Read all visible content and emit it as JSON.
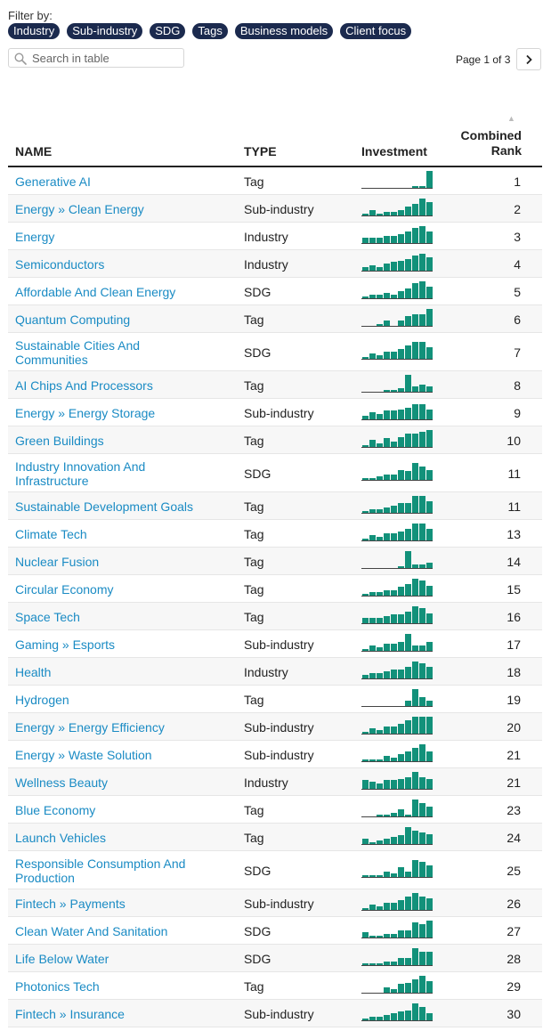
{
  "filter": {
    "label": "Filter by:",
    "chips": [
      "Industry",
      "Sub-industry",
      "SDG",
      "Tags",
      "Business models",
      "Client focus"
    ]
  },
  "search": {
    "placeholder": "Search in table",
    "value": ""
  },
  "pager": {
    "text": "Page 1 of 3"
  },
  "columns": {
    "name": "NAME",
    "type": "TYPE",
    "investment": "Investment",
    "rank_line1": "Combined",
    "rank_line2": "Rank"
  },
  "colors": {
    "link": "#1a8bc4",
    "chip_bg": "#1b2a4e",
    "bar": "#12917a",
    "row_alt": "#f7f7f7"
  },
  "rows": [
    {
      "name": "Generative AI",
      "type": "Tag",
      "rank": "1",
      "bars": [
        0,
        0,
        0,
        0,
        0,
        0,
        0,
        1,
        1,
        10
      ]
    },
    {
      "name": "Energy » Clean Energy",
      "type": "Sub-industry",
      "rank": "2",
      "bars": [
        1,
        3,
        1,
        2,
        2,
        3,
        5,
        7,
        10,
        8
      ]
    },
    {
      "name": "Energy",
      "type": "Industry",
      "rank": "3",
      "bars": [
        3,
        3,
        3,
        4,
        4,
        5,
        7,
        9,
        10,
        7
      ]
    },
    {
      "name": "Semiconductors",
      "type": "Industry",
      "rank": "4",
      "bars": [
        2,
        3,
        2,
        4,
        5,
        6,
        7,
        9,
        10,
        8
      ]
    },
    {
      "name": "Affordable And Clean Energy",
      "type": "SDG",
      "rank": "5",
      "bars": [
        1,
        2,
        2,
        3,
        2,
        4,
        6,
        9,
        10,
        7
      ]
    },
    {
      "name": "Quantum Computing",
      "type": "Tag",
      "rank": "6",
      "bars": [
        0,
        0,
        1,
        3,
        0,
        3,
        6,
        7,
        7,
        10
      ]
    },
    {
      "name": "Sustainable Cities And Communities",
      "type": "SDG",
      "rank": "7",
      "bars": [
        1,
        3,
        2,
        4,
        4,
        6,
        8,
        10,
        10,
        7
      ]
    },
    {
      "name": "AI Chips And Processors",
      "type": "Tag",
      "rank": "8",
      "bars": [
        0,
        0,
        0,
        1,
        1,
        2,
        10,
        3,
        4,
        3
      ]
    },
    {
      "name": "Energy » Energy Storage",
      "type": "Sub-industry",
      "rank": "9",
      "bars": [
        2,
        4,
        3,
        5,
        5,
        6,
        7,
        9,
        9,
        6
      ]
    },
    {
      "name": "Green Buildings",
      "type": "Tag",
      "rank": "10",
      "bars": [
        1,
        4,
        2,
        5,
        3,
        6,
        8,
        8,
        9,
        10
      ]
    },
    {
      "name": "Industry Innovation And Infrastructure",
      "type": "SDG",
      "rank": "11",
      "bars": [
        1,
        1,
        2,
        3,
        3,
        6,
        5,
        10,
        8,
        6
      ]
    },
    {
      "name": "Sustainable Development Goals",
      "type": "Tag",
      "rank": "11",
      "bars": [
        1,
        2,
        2,
        3,
        4,
        6,
        6,
        10,
        10,
        7
      ]
    },
    {
      "name": "Climate Tech",
      "type": "Tag",
      "rank": "13",
      "bars": [
        1,
        3,
        2,
        4,
        4,
        5,
        7,
        10,
        10,
        7
      ]
    },
    {
      "name": "Nuclear Fusion",
      "type": "Tag",
      "rank": "14",
      "bars": [
        0,
        0,
        0,
        0,
        0,
        1,
        10,
        2,
        2,
        3
      ]
    },
    {
      "name": "Circular Economy",
      "type": "Tag",
      "rank": "15",
      "bars": [
        1,
        2,
        2,
        3,
        3,
        5,
        7,
        10,
        9,
        6
      ]
    },
    {
      "name": "Space Tech",
      "type": "Tag",
      "rank": "16",
      "bars": [
        3,
        3,
        3,
        4,
        5,
        5,
        7,
        10,
        9,
        6
      ]
    },
    {
      "name": "Gaming » Esports",
      "type": "Sub-industry",
      "rank": "17",
      "bars": [
        1,
        3,
        2,
        4,
        4,
        5,
        10,
        3,
        3,
        5
      ]
    },
    {
      "name": "Health",
      "type": "Industry",
      "rank": "18",
      "bars": [
        2,
        3,
        3,
        4,
        5,
        5,
        7,
        10,
        9,
        7
      ]
    },
    {
      "name": "Hydrogen",
      "type": "Tag",
      "rank": "19",
      "bars": [
        0,
        0,
        0,
        0,
        0,
        0,
        3,
        10,
        5,
        3
      ]
    },
    {
      "name": "Energy » Energy Efficiency",
      "type": "Sub-industry",
      "rank": "20",
      "bars": [
        1,
        3,
        2,
        4,
        4,
        6,
        8,
        10,
        10,
        10
      ]
    },
    {
      "name": "Energy » Waste Solution",
      "type": "Sub-industry",
      "rank": "21",
      "bars": [
        1,
        1,
        1,
        3,
        2,
        4,
        6,
        8,
        10,
        6
      ]
    },
    {
      "name": "Wellness Beauty",
      "type": "Industry",
      "rank": "21",
      "bars": [
        5,
        4,
        3,
        5,
        5,
        6,
        7,
        10,
        7,
        6
      ]
    },
    {
      "name": "Blue Economy",
      "type": "Tag",
      "rank": "23",
      "bars": [
        0,
        0,
        1,
        1,
        2,
        4,
        1,
        10,
        8,
        6
      ]
    },
    {
      "name": "Launch Vehicles",
      "type": "Tag",
      "rank": "24",
      "bars": [
        3,
        1,
        2,
        3,
        4,
        5,
        10,
        8,
        7,
        6
      ]
    },
    {
      "name": "Responsible Consumption And Production",
      "type": "SDG",
      "rank": "25",
      "bars": [
        1,
        1,
        1,
        3,
        2,
        6,
        3,
        10,
        9,
        7
      ]
    },
    {
      "name": "Fintech » Payments",
      "type": "Sub-industry",
      "rank": "26",
      "bars": [
        1,
        3,
        2,
        4,
        4,
        6,
        8,
        10,
        8,
        7
      ]
    },
    {
      "name": "Clean Water And Sanitation",
      "type": "SDG",
      "rank": "27",
      "bars": [
        3,
        1,
        1,
        2,
        2,
        4,
        4,
        9,
        8,
        10
      ]
    },
    {
      "name": "Life Below Water",
      "type": "SDG",
      "rank": "28",
      "bars": [
        1,
        1,
        1,
        2,
        2,
        4,
        4,
        10,
        8,
        8
      ]
    },
    {
      "name": "Photonics Tech",
      "type": "Tag",
      "rank": "29",
      "bars": [
        0,
        0,
        0,
        3,
        2,
        5,
        6,
        8,
        10,
        7
      ]
    },
    {
      "name": "Fintech » Insurance",
      "type": "Sub-industry",
      "rank": "30",
      "bars": [
        1,
        2,
        2,
        3,
        4,
        5,
        6,
        10,
        8,
        4
      ]
    }
  ]
}
